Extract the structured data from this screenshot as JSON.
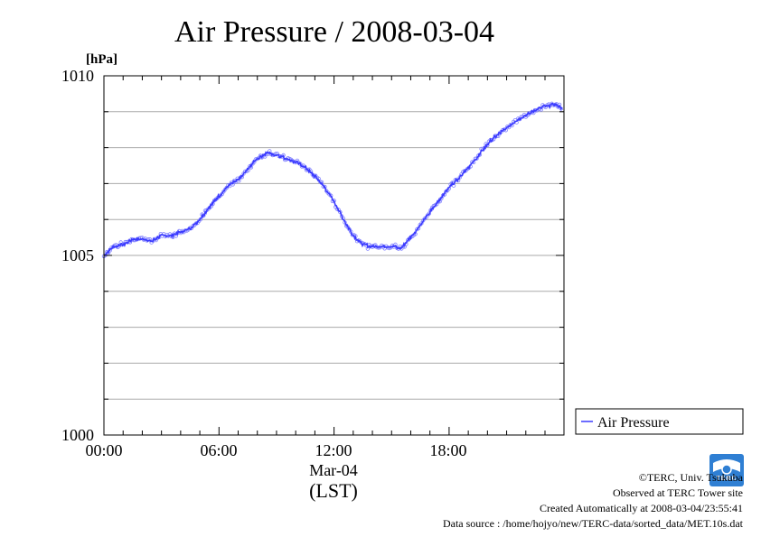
{
  "chart_data": {
    "type": "line",
    "title": "Air Pressure / 2008-03-04",
    "unit": "[hPa]",
    "xlabel_date": "Mar-04",
    "xlabel_tz": "(LST)",
    "x_ticks": [
      "00:00",
      "06:00",
      "12:00",
      "18:00"
    ],
    "y_ticks": [
      "1000",
      "1005",
      "1010"
    ],
    "ylim": [
      1000,
      1010
    ],
    "xlim_hours": [
      0,
      23.99
    ],
    "grid": true,
    "legend": "right-bottom",
    "series": [
      {
        "name": "Air Pressure",
        "color": "#3a3aff",
        "x_hours": [
          0.0,
          0.5,
          1.0,
          1.5,
          2.0,
          2.5,
          3.0,
          3.5,
          4.0,
          4.5,
          5.0,
          5.5,
          6.0,
          6.5,
          7.0,
          7.5,
          8.0,
          8.5,
          9.0,
          9.5,
          10.0,
          10.5,
          11.0,
          11.5,
          12.0,
          12.5,
          13.0,
          13.5,
          14.0,
          14.5,
          15.0,
          15.5,
          16.0,
          16.5,
          17.0,
          17.5,
          18.0,
          18.5,
          19.0,
          19.5,
          20.0,
          20.5,
          21.0,
          21.5,
          22.0,
          22.5,
          23.0,
          23.5,
          23.9
        ],
        "values": [
          1005.0,
          1005.25,
          1005.3,
          1005.45,
          1005.45,
          1005.4,
          1005.55,
          1005.55,
          1005.65,
          1005.75,
          1006.0,
          1006.35,
          1006.65,
          1006.95,
          1007.1,
          1007.4,
          1007.7,
          1007.85,
          1007.8,
          1007.7,
          1007.6,
          1007.45,
          1007.2,
          1006.9,
          1006.5,
          1006.0,
          1005.55,
          1005.3,
          1005.25,
          1005.25,
          1005.25,
          1005.2,
          1005.5,
          1005.85,
          1006.2,
          1006.55,
          1006.9,
          1007.15,
          1007.45,
          1007.75,
          1008.1,
          1008.35,
          1008.55,
          1008.75,
          1008.9,
          1009.05,
          1009.15,
          1009.2,
          1009.1
        ]
      }
    ]
  },
  "footer": {
    "copyright": "©TERC, Univ. Tsukuba",
    "observed": "Observed at TERC Tower site",
    "created": "Created Automatically at 2008-03-04/23:55:41",
    "source": "Data source : /home/hojyo/new/TERC-data/sorted_data/MET.10s.dat",
    "logo_text": "TERC"
  }
}
